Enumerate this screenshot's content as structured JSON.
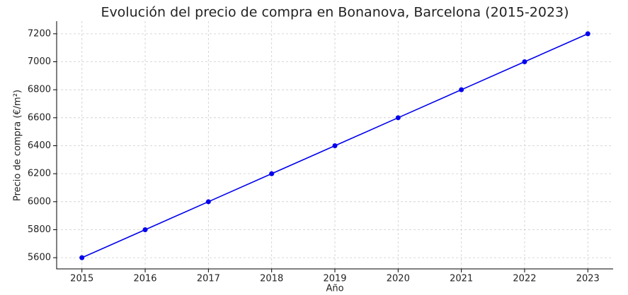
{
  "chart_data": {
    "type": "line",
    "title": "Evolución del precio de compra en Bonanova, Barcelona (2015-2023)",
    "x_label": "Año",
    "y_label": "Precio de compra (€/m²)",
    "x": [
      2015,
      2016,
      2017,
      2018,
      2019,
      2020,
      2021,
      2022,
      2023
    ],
    "series": [
      {
        "name": "Precio de compra",
        "color": "#0000ee",
        "values": [
          5600,
          5800,
          6000,
          6200,
          6400,
          6600,
          6800,
          7000,
          7200
        ]
      }
    ],
    "xlim": [
      2014.6,
      2023.4
    ],
    "xticks": [
      2015,
      2016,
      2017,
      2018,
      2019,
      2020,
      2021,
      2022,
      2023
    ],
    "ylim": [
      5520,
      7290
    ],
    "yticks": [
      5600,
      5800,
      6000,
      6200,
      6400,
      6600,
      6800,
      7000,
      7200
    ],
    "grid": true,
    "markers": true
  }
}
